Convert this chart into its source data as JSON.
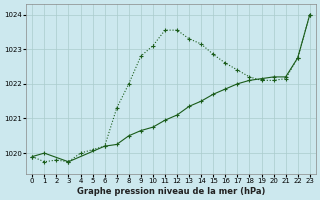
{
  "series1_dotted": {
    "x": [
      0,
      1,
      2,
      3,
      4,
      5,
      6,
      7,
      8,
      9,
      10,
      11,
      12,
      13,
      14,
      15,
      16,
      17,
      18,
      19,
      20,
      21,
      22,
      23
    ],
    "y": [
      1019.9,
      1019.75,
      1019.8,
      1019.75,
      1020.0,
      1020.1,
      1020.2,
      1021.3,
      1022.0,
      1022.8,
      1023.1,
      1023.55,
      1023.55,
      1023.3,
      1023.15,
      1022.85,
      1022.6,
      1022.4,
      1022.2,
      1022.1,
      1022.1,
      1022.15,
      1022.75,
      1024.0
    ]
  },
  "series2_solid": {
    "x": [
      0,
      1,
      3,
      6,
      7,
      8,
      9,
      10,
      11,
      12,
      13,
      14,
      15,
      16,
      17,
      18,
      19,
      20,
      21,
      22,
      23
    ],
    "y": [
      1019.9,
      1020.0,
      1019.75,
      1020.2,
      1020.25,
      1020.5,
      1020.65,
      1020.75,
      1020.95,
      1021.1,
      1021.35,
      1021.5,
      1021.7,
      1021.85,
      1022.0,
      1022.1,
      1022.15,
      1022.2,
      1022.2,
      1022.75,
      1024.0
    ]
  },
  "line_color": "#1a5c1a",
  "bg_color": "#cce8ee",
  "grid_color": "#aacccc",
  "xlabel": "Graphe pression niveau de la mer (hPa)",
  "ylim": [
    1019.4,
    1024.3
  ],
  "xlim": [
    -0.5,
    23.5
  ],
  "yticks": [
    1020,
    1021,
    1022,
    1023,
    1024
  ],
  "xticks": [
    0,
    1,
    2,
    3,
    4,
    5,
    6,
    7,
    8,
    9,
    10,
    11,
    12,
    13,
    14,
    15,
    16,
    17,
    18,
    19,
    20,
    21,
    22,
    23
  ]
}
